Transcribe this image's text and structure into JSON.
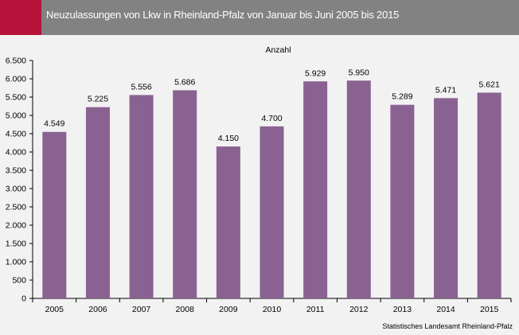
{
  "header": {
    "title": "Neuzulassungen von Lkw in Rheinland-Pfalz von Januar bis Juni 2005 bis 2015"
  },
  "source": "Statistisches Landesamt Rheinland-Pfalz",
  "colors": {
    "bar": "#8a6292",
    "header_bg": "#828282",
    "accent": "#b5133a",
    "plot_bg": "#f2f2f2"
  },
  "chart_data": {
    "type": "bar",
    "title": "",
    "ylabel": "Anzahl",
    "xlabel": "",
    "categories": [
      "2005",
      "2006",
      "2007",
      "2008",
      "2009",
      "2010",
      "2011",
      "2012",
      "2013",
      "2014",
      "2015"
    ],
    "values": [
      4549,
      5225,
      5556,
      5686,
      4150,
      4700,
      5929,
      5950,
      5289,
      5471,
      5621
    ],
    "value_labels": [
      "4.549",
      "5.225",
      "5.556",
      "5.686",
      "4.150",
      "4.700",
      "5.929",
      "5.950",
      "5.289",
      "5.471",
      "5.621"
    ],
    "ylim": [
      0,
      6500
    ],
    "yticks": [
      0,
      500,
      1000,
      1500,
      2000,
      2500,
      3000,
      3500,
      4000,
      4500,
      5000,
      5500,
      6000,
      6500
    ],
    "ytick_labels": [
      "0",
      "500",
      "1.000",
      "1.500",
      "2.000",
      "2.500",
      "3.000",
      "3.500",
      "4.000",
      "4.500",
      "5.000",
      "5.500",
      "6.000",
      "6.500"
    ],
    "grid": false,
    "legend": "none"
  }
}
